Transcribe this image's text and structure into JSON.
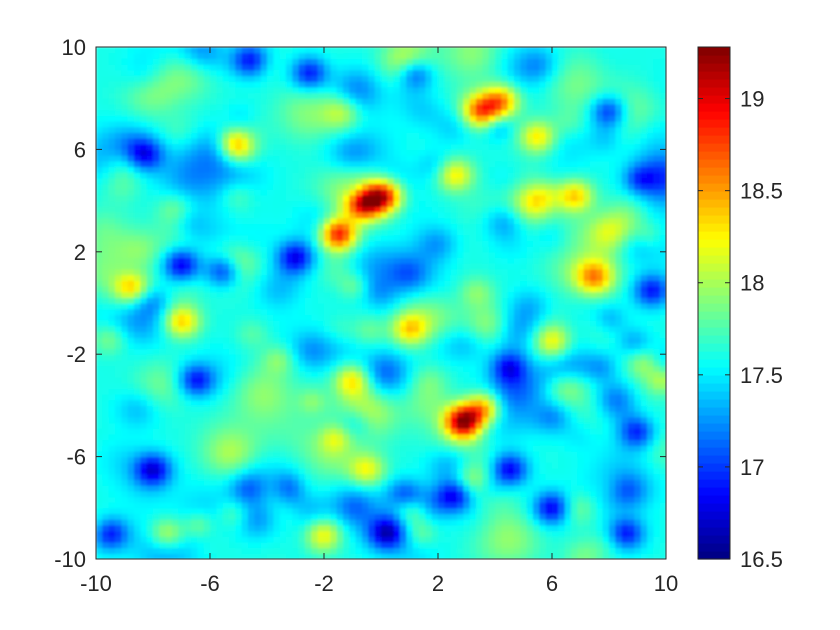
{
  "chart_data": {
    "type": "heatmap",
    "title": "",
    "xlabel": "",
    "ylabel": "",
    "xlim": [
      -10,
      10
    ],
    "ylim": [
      -10,
      10
    ],
    "xticks": [
      -10,
      -6,
      -2,
      2,
      6,
      10
    ],
    "yticks": [
      -10,
      -6,
      -2,
      2,
      6,
      10
    ],
    "xtick_labels": [
      "-10",
      "-6",
      "-2",
      "2",
      "6",
      "10"
    ],
    "ytick_labels": [
      "-10",
      "-6",
      "-2",
      "2",
      "6",
      "10"
    ],
    "colormap": "jet",
    "clim": [
      16.5,
      19.28
    ],
    "colorbar_ticks": [
      16.5,
      17,
      17.5,
      18,
      18.5,
      19
    ],
    "colorbar_tick_labels": [
      "16.5",
      "17",
      "17.5",
      "18",
      "18.5",
      "19"
    ],
    "z_mean": 17.6,
    "hot_spots": [
      {
        "x": -1.5,
        "y": 2.7,
        "z": 18.9
      },
      {
        "x": -0.6,
        "y": 3.9,
        "z": 18.9
      },
      {
        "x": 0.1,
        "y": 4.2,
        "z": 18.9
      },
      {
        "x": 2.9,
        "y": -4.6,
        "z": 19.2
      },
      {
        "x": 3.6,
        "y": -4.1,
        "z": 18.6
      },
      {
        "x": 3.5,
        "y": 7.5,
        "z": 18.6
      },
      {
        "x": 4.2,
        "y": 7.9,
        "z": 18.5
      },
      {
        "x": 6.8,
        "y": 4.2,
        "z": 18.4
      },
      {
        "x": 2.6,
        "y": 5.0,
        "z": 18.4
      },
      {
        "x": -7.0,
        "y": -0.7,
        "z": 18.4
      },
      {
        "x": -1.0,
        "y": -3.0,
        "z": 18.3
      },
      {
        "x": 1.0,
        "y": -1.0,
        "z": 18.3
      },
      {
        "x": 7.5,
        "y": 1.0,
        "z": 18.3
      },
      {
        "x": 5.5,
        "y": 6.5,
        "z": 18.3
      },
      {
        "x": -5.0,
        "y": 6.0,
        "z": 18.2
      },
      {
        "x": -7.5,
        "y": -9.0,
        "z": 18.2
      },
      {
        "x": -2.0,
        "y": -9.0,
        "z": 18.2
      },
      {
        "x": 1.0,
        "y": -8.0,
        "z": 18.2
      },
      {
        "x": -0.5,
        "y": -6.5,
        "z": 18.2
      },
      {
        "x": 6.0,
        "y": -1.5,
        "z": 18.2
      }
    ],
    "cold_spots": [
      {
        "x": -8.3,
        "y": 5.8,
        "z": 16.9
      },
      {
        "x": -4.6,
        "y": 9.5,
        "z": 16.9
      },
      {
        "x": -2.5,
        "y": 9.0,
        "z": 16.9
      },
      {
        "x": -5.5,
        "y": 1.3,
        "z": 16.7
      },
      {
        "x": -7.0,
        "y": 1.5,
        "z": 16.8
      },
      {
        "x": -3.0,
        "y": 1.8,
        "z": 16.8
      },
      {
        "x": 0.2,
        "y": -9.0,
        "z": 16.8
      },
      {
        "x": 0.8,
        "y": -7.6,
        "z": 16.7
      },
      {
        "x": 2.6,
        "y": -7.5,
        "z": 16.8
      },
      {
        "x": 4.5,
        "y": -6.5,
        "z": 16.8
      },
      {
        "x": 6.0,
        "y": -8.0,
        "z": 16.8
      },
      {
        "x": 9.0,
        "y": -5.0,
        "z": 16.9
      },
      {
        "x": 9.5,
        "y": 0.5,
        "z": 16.9
      },
      {
        "x": 8.0,
        "y": 7.5,
        "z": 16.9
      },
      {
        "x": -8.0,
        "y": -6.5,
        "z": 16.8
      },
      {
        "x": -6.5,
        "y": -3.0,
        "z": 16.9
      },
      {
        "x": -9.5,
        "y": -9.0,
        "z": 16.9
      },
      {
        "x": 4.5,
        "y": -2.5,
        "z": 16.9
      },
      {
        "x": 1.2,
        "y": 9.0,
        "z": 16.9
      },
      {
        "x": 8.6,
        "y": -9.0,
        "z": 16.9
      }
    ]
  }
}
